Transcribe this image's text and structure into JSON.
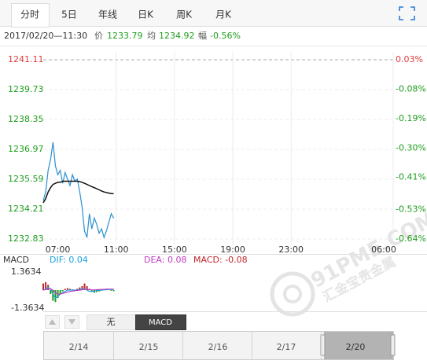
{
  "tabs": [
    "分时",
    "5日",
    "年线",
    "日K",
    "周K",
    "月K"
  ],
  "info": {
    "datetime": "2017/02/20—11:30",
    "items": [
      {
        "label": "价",
        "value": 1233.79
      },
      {
        "label": "均",
        "value": 1234.92
      },
      {
        "label": "幅",
        "value": "-0.56%"
      }
    ]
  },
  "chart_data": [
    {
      "type": "line",
      "x": [
        360,
        370,
        380,
        390,
        400,
        410,
        420,
        430,
        440,
        450,
        460,
        470,
        480,
        490,
        500,
        510,
        520,
        530,
        540,
        550,
        560,
        570,
        580,
        590,
        600,
        610,
        620,
        630,
        640,
        650
      ],
      "xlim": [
        360,
        1800
      ],
      "xticks": [
        {
          "value": 420,
          "label": "07:00"
        },
        {
          "value": 660,
          "label": "11:00"
        },
        {
          "value": 900,
          "label": "15:00"
        },
        {
          "value": 1140,
          "label": "19:00"
        },
        {
          "value": 1380,
          "label": "23:00"
        },
        {
          "value": 1800,
          "label": "06:00"
        }
      ],
      "ylim": [
        1232.83,
        1241.11
      ],
      "yticks": [
        1241.11,
        1239.73,
        1238.35,
        1236.97,
        1235.59,
        1234.21,
        1232.83
      ],
      "y2lim": [
        -0.64,
        0.03
      ],
      "y2ticks": [
        {
          "value": 0.03,
          "label": "0.03%"
        },
        {
          "value": -0.08,
          "label": "-0.08%"
        },
        {
          "value": -0.19,
          "label": "-0.19%"
        },
        {
          "value": -0.3,
          "label": "-0.30%"
        },
        {
          "value": -0.41,
          "label": "-0.41%"
        },
        {
          "value": -0.53,
          "label": "-0.53%"
        },
        {
          "value": -0.64,
          "label": "-0.64%"
        }
      ],
      "tick_colors": [
        "#e03a3a",
        "#1e9e1e",
        "#1e9e1e",
        "#1e9e1e",
        "#1e9e1e",
        "#1e9e1e",
        "#1e9e1e"
      ],
      "grid": true,
      "series": [
        {
          "color": "#2b8fcf",
          "values": [
            1234.6,
            1235.0,
            1236.0,
            1236.5,
            1237.3,
            1236.2,
            1235.8,
            1236.0,
            1235.4,
            1235.9,
            1235.6,
            1235.3,
            1235.8,
            1235.5,
            1235.6,
            1235.0,
            1234.3,
            1233.2,
            1232.9,
            1234.0,
            1233.3,
            1233.8,
            1233.5,
            1233.1,
            1233.3,
            1232.9,
            1233.2,
            1233.6,
            1234.0,
            1233.79
          ]
        },
        {
          "color": "#111111",
          "values": [
            1234.5,
            1234.7,
            1235.0,
            1235.2,
            1235.35,
            1235.4,
            1235.45,
            1235.45,
            1235.5,
            1235.5,
            1235.5,
            1235.5,
            1235.5,
            1235.5,
            1235.5,
            1235.48,
            1235.45,
            1235.4,
            1235.35,
            1235.3,
            1235.25,
            1235.2,
            1235.15,
            1235.1,
            1235.05,
            1235.0,
            1234.98,
            1234.95,
            1234.93,
            1234.92
          ]
        }
      ]
    },
    {
      "type": "macd",
      "title": "MACD",
      "x": [
        360,
        370,
        380,
        390,
        400,
        410,
        420,
        430,
        440,
        450,
        460,
        470,
        480,
        490,
        500,
        510,
        520,
        530,
        540,
        550,
        560,
        570,
        580,
        590,
        600,
        610,
        620,
        630,
        640,
        650
      ],
      "xlim": [
        360,
        1800
      ],
      "ylim": [
        -1.3634,
        1.3634
      ],
      "yticks": [
        1.3634,
        -1.3634
      ],
      "up_color": "#c0262d",
      "down_color": "#1e9e1e",
      "series": [
        {
          "name": "DIF: 0.04",
          "color": "#1aa0e0",
          "style": "line",
          "values": [
            0,
            0.1,
            0.2,
            0.1,
            -0.3,
            -0.6,
            -0.5,
            -0.3,
            -0.2,
            -0.1,
            0,
            0,
            0,
            0,
            0,
            0.05,
            0.1,
            0.1,
            0,
            -0.1,
            -0.1,
            -0.1,
            -0.05,
            0,
            0,
            0.02,
            0.03,
            0.04,
            0.04,
            0.04
          ]
        },
        {
          "name": "DEA: 0.08",
          "color": "#c03cc0",
          "style": "line",
          "values": [
            0,
            0.05,
            0.1,
            0.1,
            0,
            -0.2,
            -0.3,
            -0.3,
            -0.25,
            -0.2,
            -0.15,
            -0.1,
            -0.08,
            -0.05,
            -0.03,
            0,
            0.03,
            0.05,
            0.05,
            0.03,
            0.02,
            0.02,
            0.03,
            0.04,
            0.05,
            0.06,
            0.07,
            0.08,
            0.08,
            0.08
          ]
        },
        {
          "name": "MACD: -0.08",
          "color": "#c0262d",
          "style": "bar",
          "values": [
            0.5,
            0.6,
            0.4,
            -0.3,
            -0.8,
            -0.9,
            -0.6,
            -0.3,
            -0.1,
            0.1,
            0.15,
            0.1,
            0.05,
            -0.05,
            0.1,
            0.2,
            0.3,
            0.5,
            0.3,
            0.1,
            -0.1,
            -0.2,
            -0.15,
            -0.1,
            -0.05,
            0.05,
            0.1,
            0,
            -0.05,
            -0.08
          ]
        }
      ]
    }
  ],
  "indicators": [
    "无",
    "MACD"
  ],
  "navigator": [
    "2/14",
    "2/15",
    "2/16",
    "2/17",
    "2/20"
  ],
  "watermark": {
    "brand": "91PME.COM",
    "name": "汇金宝贵金属"
  }
}
